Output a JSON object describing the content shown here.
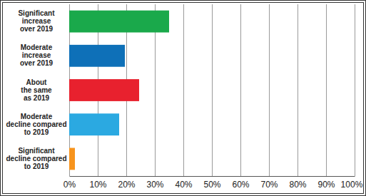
{
  "chart_data": {
    "type": "bar",
    "orientation": "horizontal",
    "categories": [
      "Significant\nincrease\nover 2019",
      "Moderate\nincrease\nover 2019",
      "About\nthe same\nas 2019",
      "Moderate\ndecline compared\nto 2019",
      "Significant\ndecline compared\nto 2019"
    ],
    "values": [
      35,
      19.5,
      24.5,
      17.5,
      2
    ],
    "colors": [
      "#1aa94b",
      "#0e70b8",
      "#e8212e",
      "#2ba9e1",
      "#f7941d"
    ],
    "xlim": [
      0,
      100
    ],
    "xticks": [
      {
        "value": 0,
        "label": "0%"
      },
      {
        "value": 10,
        "label": "10%"
      },
      {
        "value": 20,
        "label": "20%"
      },
      {
        "value": 30,
        "label": "30%"
      },
      {
        "value": 40,
        "label": "40%"
      },
      {
        "value": 50,
        "label": "50%"
      },
      {
        "value": 60,
        "label": "60%"
      },
      {
        "value": 70,
        "label": "70%"
      },
      {
        "value": 80,
        "label": "80%"
      },
      {
        "value": 90,
        "label": "90%"
      },
      {
        "value": 100,
        "label": "100%"
      }
    ],
    "grid": true
  }
}
